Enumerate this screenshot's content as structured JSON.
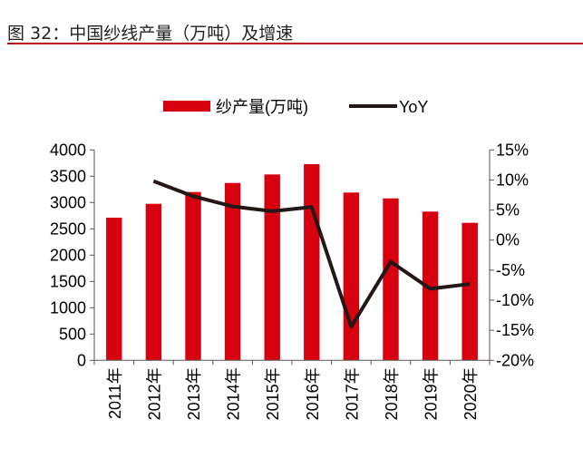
{
  "chart_data": {
    "type": "bar+line",
    "title": "图 32：中国纱线产量（万吨）及增速",
    "categories": [
      "2011年",
      "2012年",
      "2013年",
      "2014年",
      "2015年",
      "2016年",
      "2017年",
      "2018年",
      "2019年",
      "2020年"
    ],
    "series": [
      {
        "name": "纱产量(万吨)",
        "type": "bar",
        "axis": "left",
        "color": "#d7000f",
        "values": [
          2712,
          2976,
          3200,
          3372,
          3534,
          3729,
          3190,
          3079,
          2828,
          2614
        ]
      },
      {
        "name": "YoY",
        "type": "line",
        "axis": "right",
        "color": "#231815",
        "values": [
          null,
          9.8,
          7.3,
          5.6,
          4.8,
          5.5,
          -14.4,
          -3.6,
          -8.1,
          -7.3
        ]
      }
    ],
    "left_axis": {
      "ylim": [
        0,
        4000
      ],
      "ticks": [
        0,
        500,
        1000,
        1500,
        2000,
        2500,
        3000,
        3500,
        4000
      ]
    },
    "right_axis": {
      "ylim": [
        -20,
        15
      ],
      "ticks": [
        -20,
        -15,
        -10,
        -5,
        0,
        5,
        10,
        15
      ],
      "unit": "%"
    },
    "legend": "top",
    "grid": false
  }
}
